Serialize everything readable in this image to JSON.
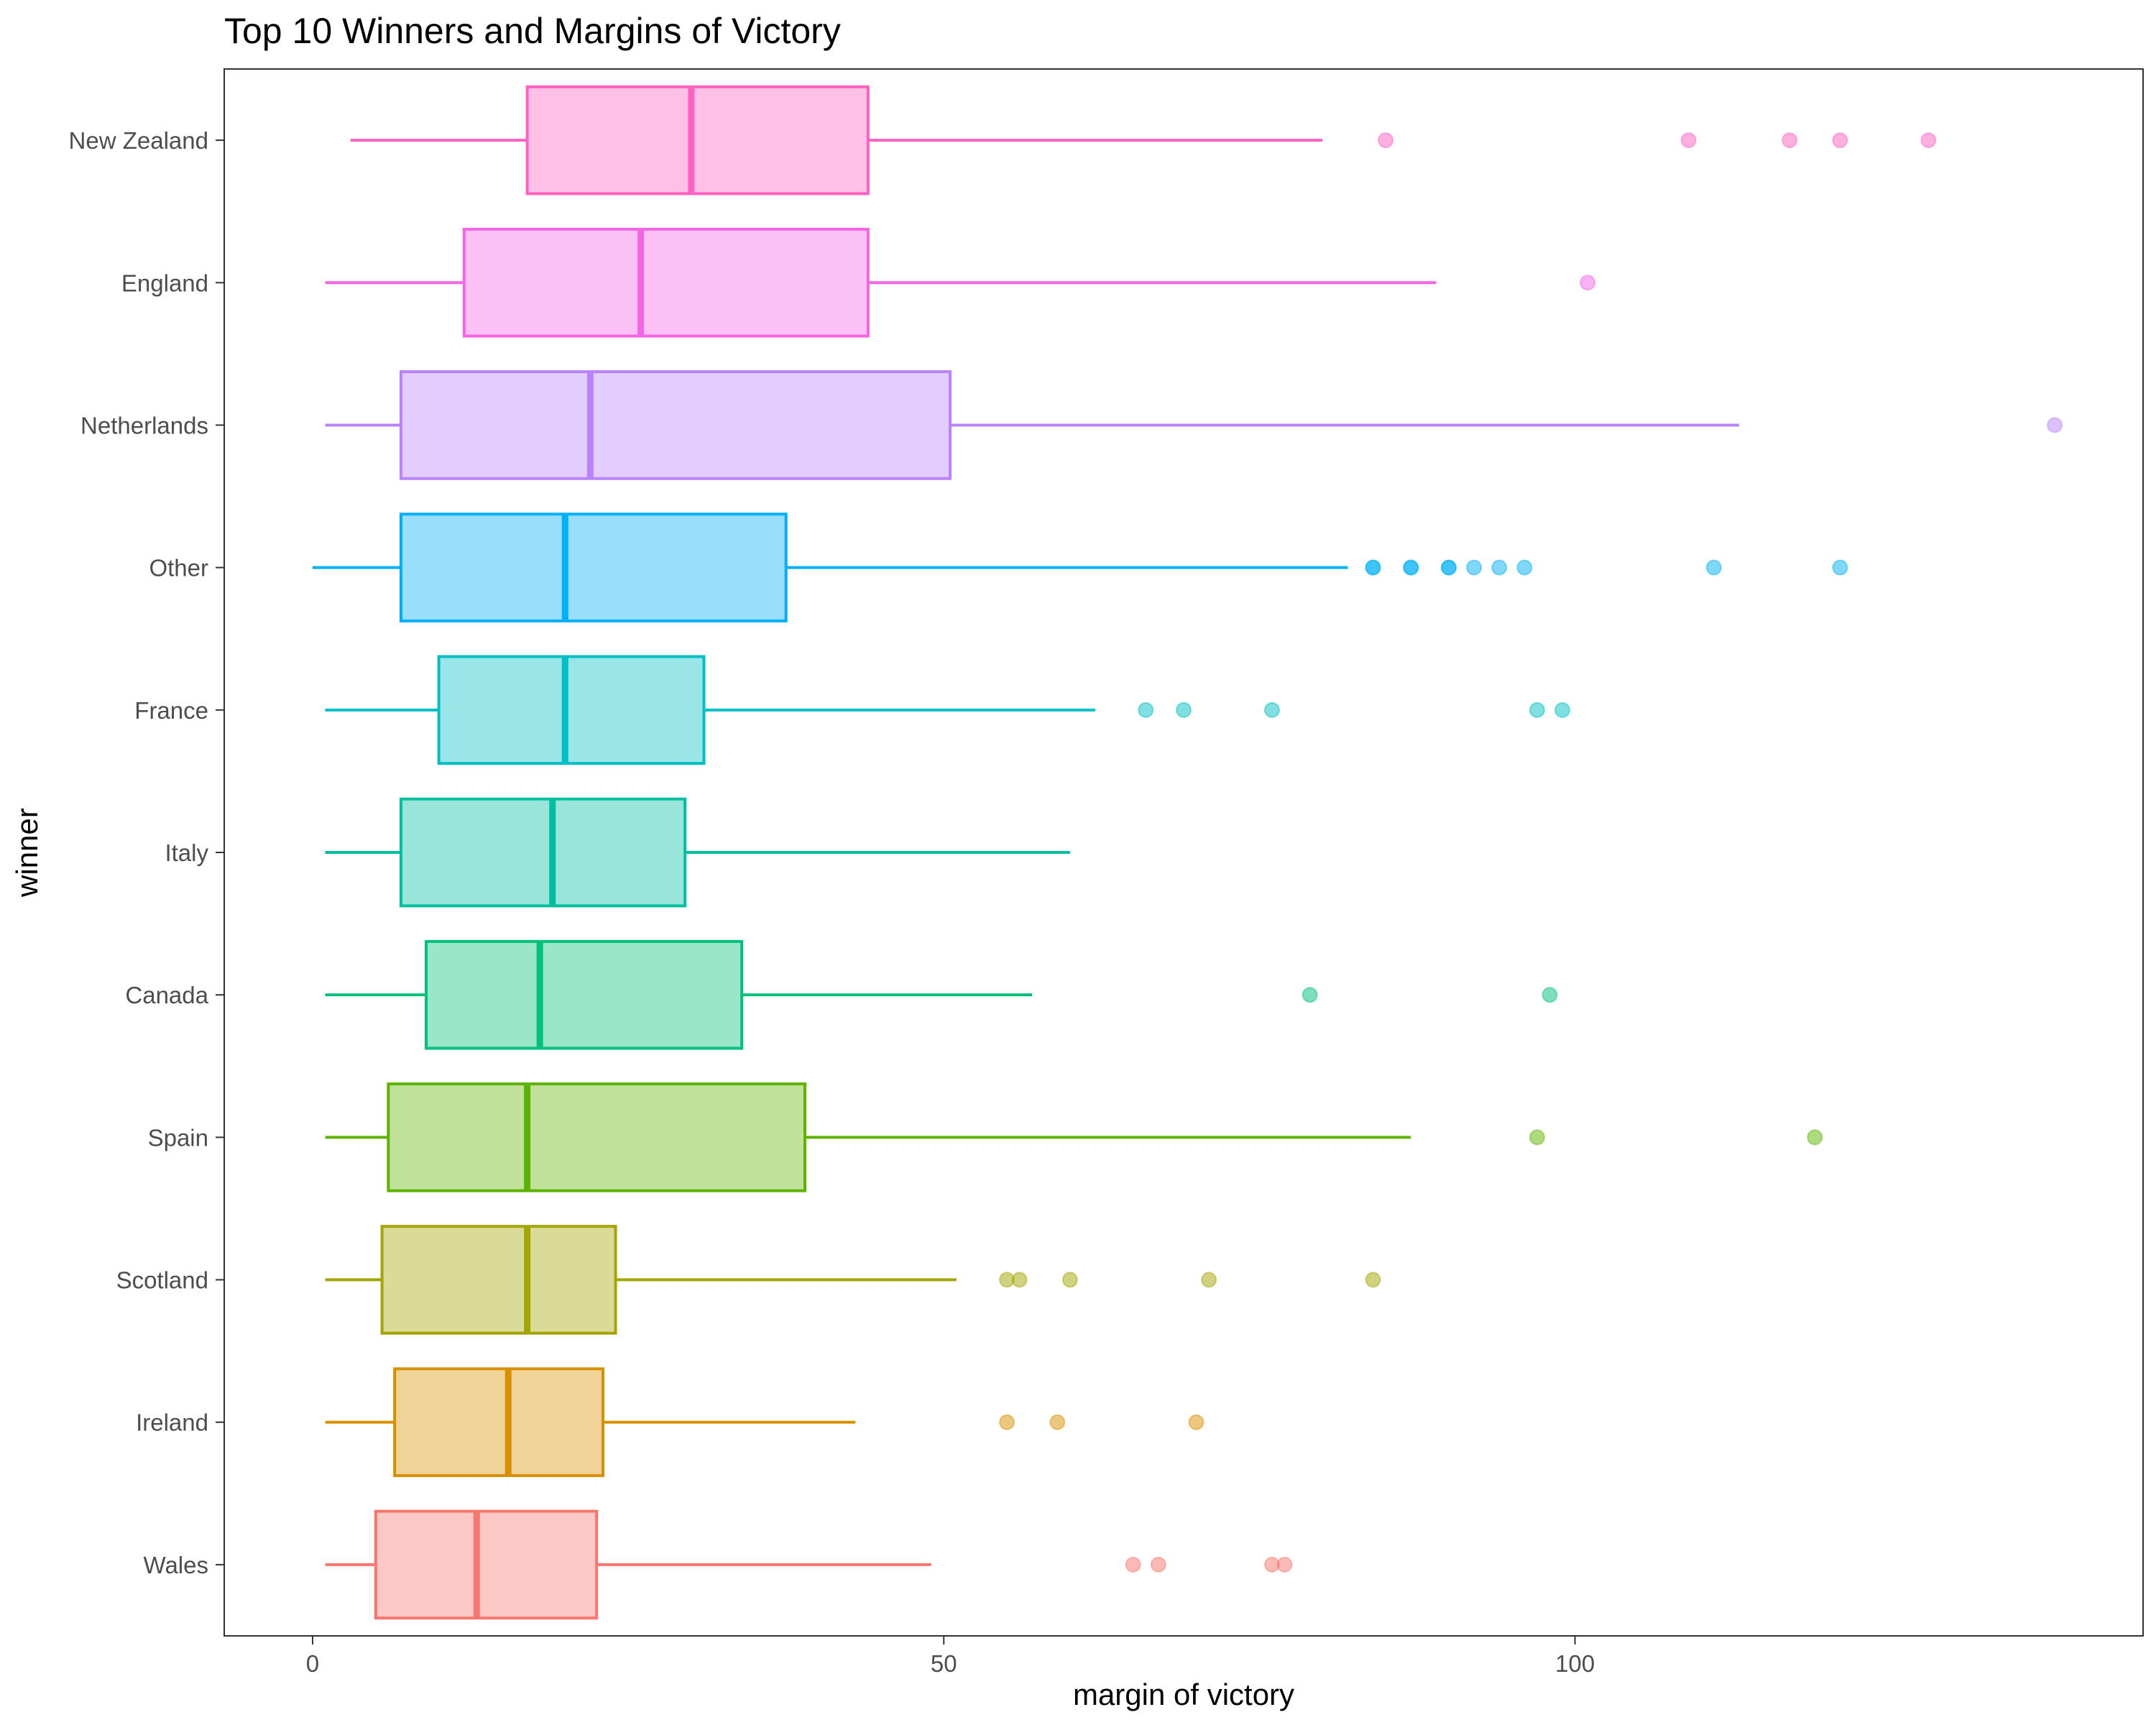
{
  "chart_data": {
    "type": "boxplot",
    "orientation": "horizontal",
    "title": "Top 10 Winners and Margins of Victory",
    "xlabel": "margin of victory",
    "ylabel": "winner",
    "xlim": [
      -7,
      145
    ],
    "xticks": [
      0,
      50,
      100
    ],
    "grid": false,
    "legend": "none",
    "series": [
      {
        "name": "New Zealand",
        "color": "#FF61C3",
        "whisker_low": 3,
        "q1": 17,
        "median": 30,
        "q3": 44,
        "whisker_high": 80,
        "outliers": [
          85,
          109,
          117,
          121,
          128
        ]
      },
      {
        "name": "England",
        "color": "#F564E3",
        "whisker_low": 1,
        "q1": 12,
        "median": 26,
        "q3": 44,
        "whisker_high": 89,
        "outliers": [
          101
        ]
      },
      {
        "name": "Netherlands",
        "color": "#B983FF",
        "whisker_low": 1,
        "q1": 7,
        "median": 22,
        "q3": 50.5,
        "whisker_high": 113,
        "outliers": [
          138
        ]
      },
      {
        "name": "Other",
        "color": "#00B0F6",
        "whisker_low": 0,
        "q1": 7,
        "median": 20,
        "q3": 37.5,
        "whisker_high": 82,
        "outliers": [
          84,
          84,
          87,
          87,
          90,
          90,
          92,
          94,
          96,
          111,
          121
        ]
      },
      {
        "name": "France",
        "color": "#00BFC4",
        "whisker_low": 1,
        "q1": 10,
        "median": 20,
        "q3": 31,
        "whisker_high": 62,
        "outliers": [
          66,
          69,
          76,
          97,
          99
        ]
      },
      {
        "name": "Italy",
        "color": "#00BFA0",
        "whisker_low": 1,
        "q1": 7,
        "median": 19,
        "q3": 29.5,
        "whisker_high": 60,
        "outliers": []
      },
      {
        "name": "Canada",
        "color": "#00C07A",
        "whisker_low": 1,
        "q1": 9,
        "median": 18,
        "q3": 34,
        "whisker_high": 57,
        "outliers": [
          79,
          98
        ]
      },
      {
        "name": "Spain",
        "color": "#5EB300",
        "whisker_low": 1,
        "q1": 6,
        "median": 17,
        "q3": 39,
        "whisker_high": 87,
        "outliers": [
          97,
          119
        ]
      },
      {
        "name": "Scotland",
        "color": "#A3A500",
        "whisker_low": 1,
        "q1": 5.5,
        "median": 17,
        "q3": 24,
        "whisker_high": 51,
        "outliers": [
          55,
          56,
          60,
          71,
          84
        ]
      },
      {
        "name": "Ireland",
        "color": "#D89000",
        "whisker_low": 1,
        "q1": 6.5,
        "median": 15.5,
        "q3": 23,
        "whisker_high": 43,
        "outliers": [
          55,
          59,
          70
        ]
      },
      {
        "name": "Wales",
        "color": "#F8766D",
        "whisker_low": 1,
        "q1": 5,
        "median": 13,
        "q3": 22.5,
        "whisker_high": 49,
        "outliers": [
          65,
          67,
          76,
          77
        ]
      }
    ]
  }
}
